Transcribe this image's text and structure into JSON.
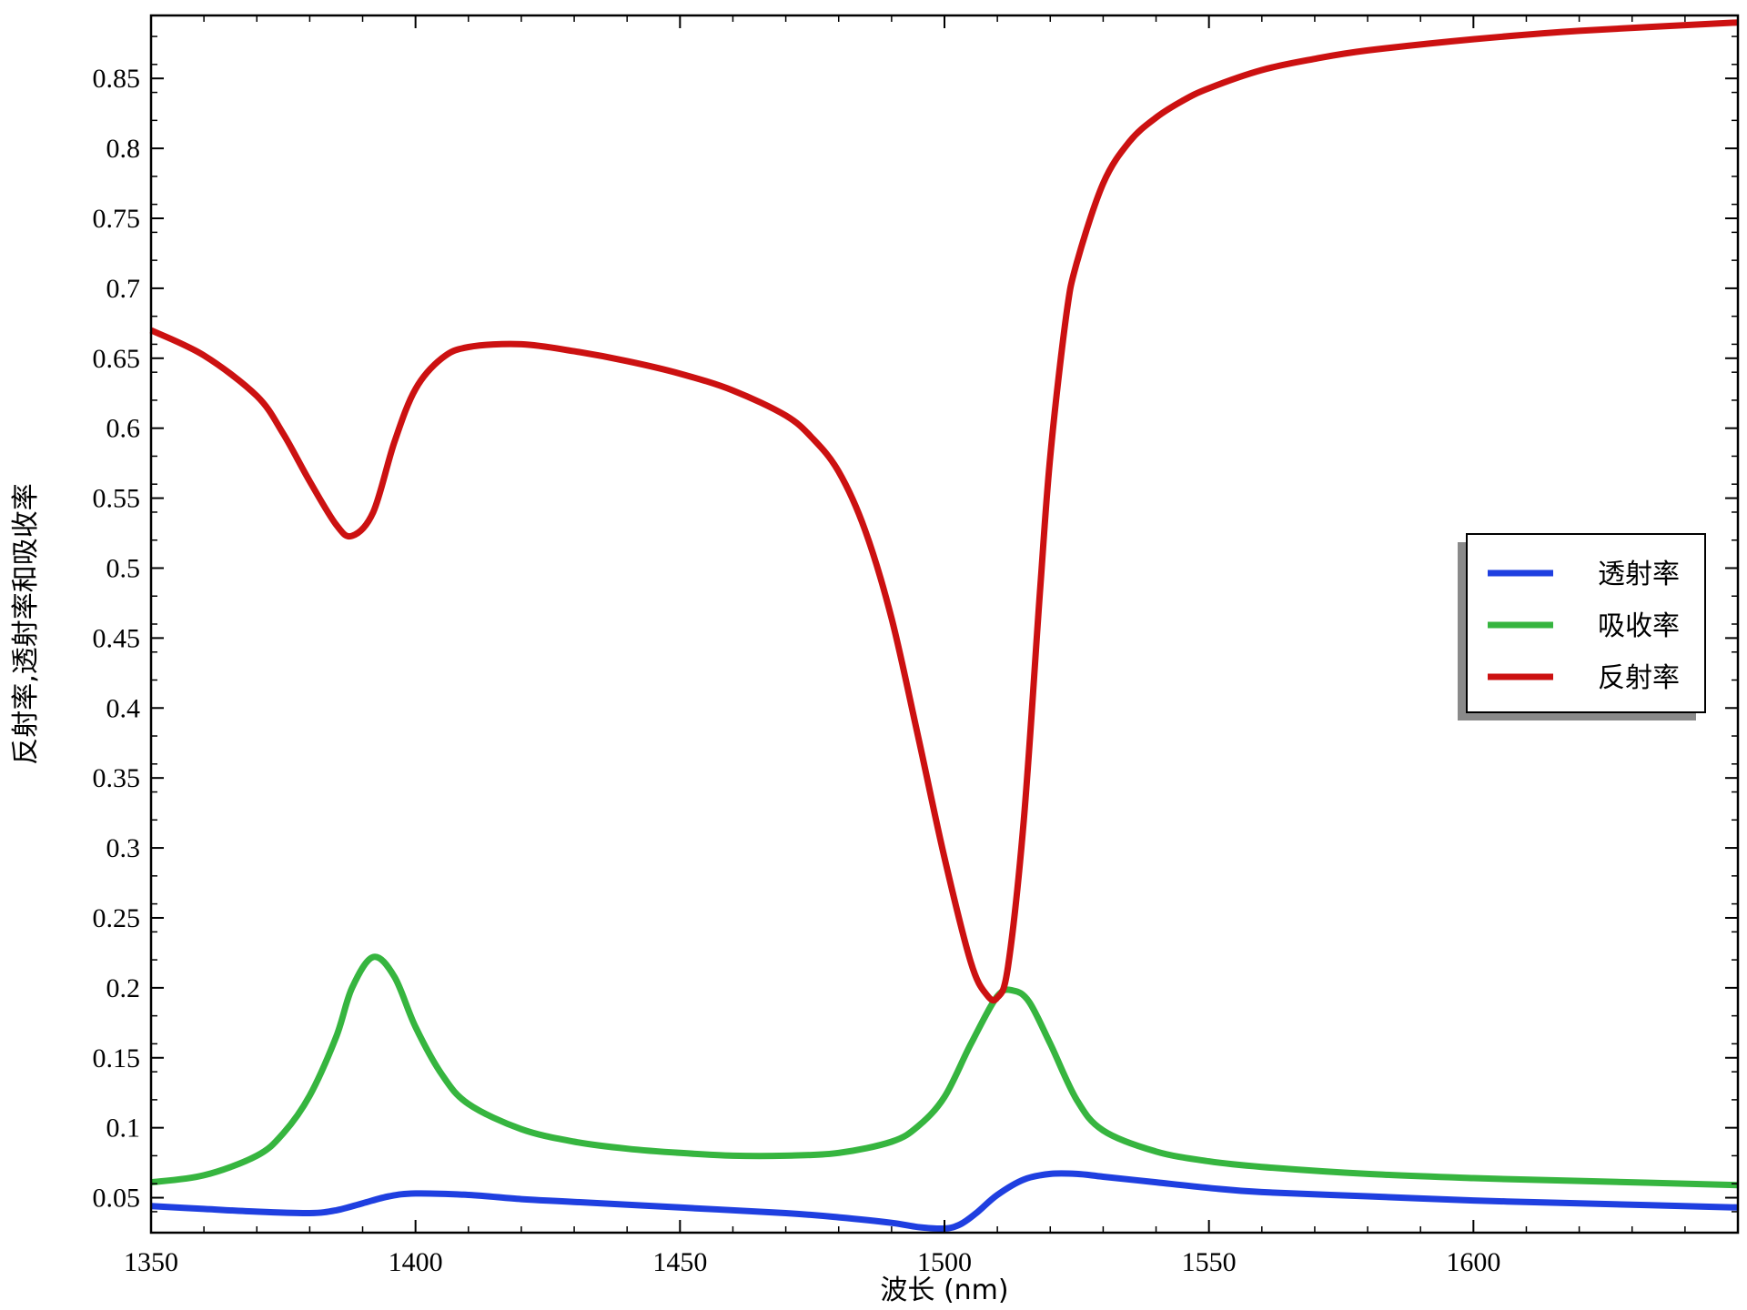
{
  "chart_data": {
    "type": "line",
    "xlabel": "波长 (nm)",
    "ylabel": "反射率,透射率和吸收率",
    "xlim": [
      1350,
      1650
    ],
    "ylim": [
      0.025,
      0.895
    ],
    "x_ticks": [
      1350,
      1400,
      1450,
      1500,
      1550,
      1600
    ],
    "y_ticks": [
      0.05,
      0.1,
      0.15,
      0.2,
      0.25,
      0.3,
      0.35,
      0.4,
      0.45,
      0.5,
      0.55,
      0.6,
      0.65,
      0.7,
      0.75,
      0.8,
      0.85
    ],
    "grid": false,
    "legend_position": "right",
    "series": [
      {
        "name": "透射率",
        "color": "#1f3fe0",
        "x": [
          1350,
          1360,
          1370,
          1380,
          1385,
          1390,
          1395,
          1400,
          1410,
          1420,
          1430,
          1450,
          1470,
          1480,
          1490,
          1495,
          1500,
          1503,
          1506,
          1510,
          1515,
          1520,
          1525,
          1530,
          1540,
          1550,
          1560,
          1580,
          1600,
          1620,
          1650
        ],
        "y": [
          0.044,
          0.042,
          0.04,
          0.039,
          0.041,
          0.046,
          0.051,
          0.053,
          0.052,
          0.049,
          0.047,
          0.043,
          0.039,
          0.036,
          0.032,
          0.029,
          0.028,
          0.031,
          0.039,
          0.052,
          0.063,
          0.067,
          0.067,
          0.065,
          0.061,
          0.057,
          0.054,
          0.051,
          0.048,
          0.046,
          0.043
        ]
      },
      {
        "name": "吸收率",
        "color": "#36b53f",
        "x": [
          1350,
          1360,
          1370,
          1375,
          1380,
          1385,
          1388,
          1392,
          1396,
          1400,
          1405,
          1410,
          1420,
          1430,
          1440,
          1450,
          1460,
          1470,
          1480,
          1490,
          1495,
          1500,
          1505,
          1510,
          1513,
          1516,
          1520,
          1525,
          1530,
          1540,
          1550,
          1560,
          1580,
          1600,
          1620,
          1650
        ],
        "y": [
          0.061,
          0.066,
          0.08,
          0.096,
          0.123,
          0.165,
          0.2,
          0.222,
          0.208,
          0.172,
          0.138,
          0.117,
          0.099,
          0.09,
          0.085,
          0.082,
          0.08,
          0.08,
          0.082,
          0.09,
          0.101,
          0.122,
          0.16,
          0.194,
          0.198,
          0.19,
          0.16,
          0.12,
          0.098,
          0.083,
          0.076,
          0.072,
          0.067,
          0.064,
          0.062,
          0.059
        ]
      },
      {
        "name": "反射率",
        "color": "#cc1111",
        "x": [
          1350,
          1360,
          1370,
          1375,
          1380,
          1385,
          1388,
          1392,
          1396,
          1400,
          1405,
          1410,
          1420,
          1430,
          1440,
          1450,
          1460,
          1470,
          1475,
          1480,
          1485,
          1490,
          1495,
          1500,
          1505,
          1508,
          1510,
          1512,
          1515,
          1518,
          1520,
          1523,
          1525,
          1530,
          1535,
          1540,
          1545,
          1550,
          1560,
          1570,
          1580,
          1600,
          1620,
          1650
        ],
        "y": [
          0.67,
          0.652,
          0.623,
          0.596,
          0.562,
          0.531,
          0.523,
          0.54,
          0.59,
          0.628,
          0.65,
          0.658,
          0.66,
          0.655,
          0.648,
          0.639,
          0.627,
          0.609,
          0.593,
          0.569,
          0.527,
          0.464,
          0.38,
          0.293,
          0.218,
          0.195,
          0.193,
          0.215,
          0.32,
          0.48,
          0.58,
          0.68,
          0.718,
          0.775,
          0.805,
          0.822,
          0.834,
          0.843,
          0.856,
          0.864,
          0.87,
          0.878,
          0.884,
          0.89
        ]
      }
    ]
  }
}
